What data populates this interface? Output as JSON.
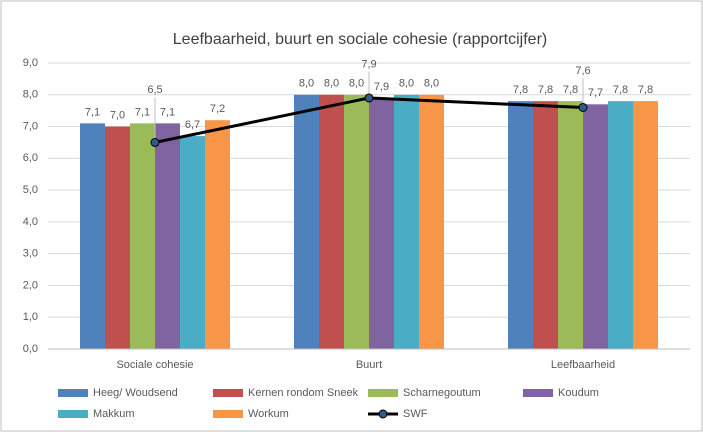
{
  "chart_data": {
    "type": "bar",
    "title": "Leefbaarheid, buurt en sociale cohesie (rapportcijfer)",
    "categories": [
      "Sociale cohesie",
      "Buurt",
      "Leefbaarheid"
    ],
    "series": [
      {
        "name": "Heeg/ Woudsend",
        "color": "#4f81bd",
        "values": [
          7.1,
          8.0,
          7.8
        ],
        "value_labels": [
          "7,1",
          "8,0",
          "7,8"
        ]
      },
      {
        "name": "Kernen rondom Sneek",
        "color": "#c0504d",
        "values": [
          7.0,
          8.0,
          7.8
        ],
        "value_labels": [
          "7,0",
          "8,0",
          "7,8"
        ]
      },
      {
        "name": "Scharnegoutum",
        "color": "#9bbb59",
        "values": [
          7.1,
          8.0,
          7.8
        ],
        "value_labels": [
          "7,1",
          "8,0",
          "7,8"
        ]
      },
      {
        "name": "Koudum",
        "color": "#8064a2",
        "values": [
          7.1,
          7.9,
          7.7
        ],
        "value_labels": [
          "7,1",
          "7,9",
          "7,7"
        ]
      },
      {
        "name": "Makkum",
        "color": "#4bacc6",
        "values": [
          6.7,
          8.0,
          7.8
        ],
        "value_labels": [
          "6,7",
          "8,0",
          "7,8"
        ]
      },
      {
        "name": "Workum",
        "color": "#f79646",
        "values": [
          7.2,
          8.0,
          7.8
        ],
        "value_labels": [
          "7,2",
          "8,0",
          "7,8"
        ]
      },
      {
        "name": "SWF",
        "type": "line",
        "color": "#000000",
        "marker_color": "#2e5b8a",
        "values": [
          6.5,
          7.9,
          7.6
        ],
        "value_labels": [
          "6,5",
          "7,9",
          "7,6"
        ]
      }
    ],
    "ylim": [
      0,
      9
    ],
    "yticks": [
      {
        "value": 0,
        "label": "0,0"
      },
      {
        "value": 1,
        "label": "1,0"
      },
      {
        "value": 2,
        "label": "2,0"
      },
      {
        "value": 3,
        "label": "3,0"
      },
      {
        "value": 4,
        "label": "4,0"
      },
      {
        "value": 5,
        "label": "5,0"
      },
      {
        "value": 6,
        "label": "6,0"
      },
      {
        "value": 7,
        "label": "7,0"
      },
      {
        "value": 8,
        "label": "8,0"
      },
      {
        "value": 9,
        "label": "9,0"
      }
    ],
    "grid": true,
    "legend": "bottom"
  }
}
